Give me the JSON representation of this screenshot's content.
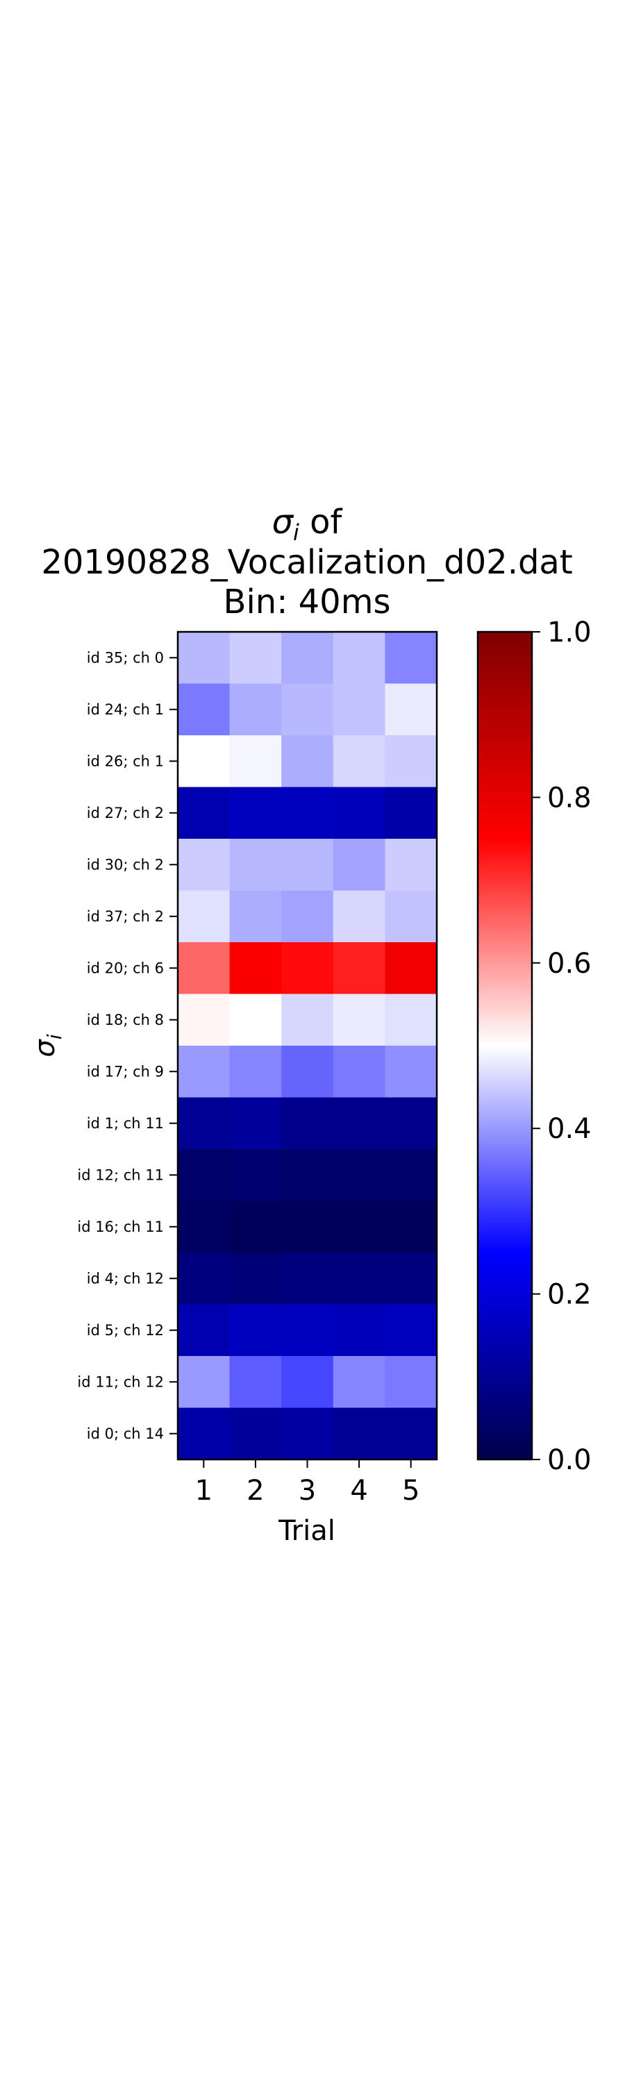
{
  "chart_data": {
    "type": "heatmap",
    "title": {
      "symbol": "σ",
      "subscript": "i",
      "suffix": " of",
      "line2": "20190828_Vocalization_d02.dat",
      "line3": "Bin: 40ms"
    },
    "xlabel": "Trial",
    "ylabel": {
      "symbol": "σ",
      "subscript": "i"
    },
    "x_categories": [
      "1",
      "2",
      "3",
      "4",
      "5"
    ],
    "y_categories": [
      "id 35; ch 0",
      "id 24; ch 1",
      "id 26; ch 1",
      "id 27; ch 2",
      "id 30; ch 2",
      "id 37; ch 2",
      "id 20; ch 6",
      "id 18; ch 8",
      "id 17; ch 9",
      "id 1; ch 11",
      "id 12; ch 11",
      "id 16; ch 11",
      "id 4; ch 12",
      "id 5; ch 12",
      "id 11; ch 12",
      "id 0; ch 14"
    ],
    "values": [
      [
        0.43,
        0.45,
        0.42,
        0.44,
        0.38
      ],
      [
        0.37,
        0.42,
        0.43,
        0.44,
        0.48
      ],
      [
        0.5,
        0.49,
        0.42,
        0.46,
        0.45
      ],
      [
        0.14,
        0.16,
        0.16,
        0.15,
        0.13
      ],
      [
        0.45,
        0.43,
        0.43,
        0.41,
        0.45
      ],
      [
        0.47,
        0.42,
        0.41,
        0.46,
        0.44
      ],
      [
        0.65,
        0.76,
        0.74,
        0.72,
        0.78
      ],
      [
        0.51,
        0.5,
        0.46,
        0.48,
        0.47
      ],
      [
        0.4,
        0.38,
        0.35,
        0.37,
        0.39
      ],
      [
        0.1,
        0.11,
        0.09,
        0.09,
        0.09
      ],
      [
        0.04,
        0.05,
        0.04,
        0.04,
        0.04
      ],
      [
        0.03,
        0.02,
        0.02,
        0.02,
        0.02
      ],
      [
        0.07,
        0.06,
        0.07,
        0.07,
        0.07
      ],
      [
        0.14,
        0.16,
        0.16,
        0.15,
        0.16
      ],
      [
        0.4,
        0.34,
        0.32,
        0.38,
        0.37
      ],
      [
        0.13,
        0.11,
        0.12,
        0.1,
        0.1
      ]
    ],
    "colorbar": {
      "colormap": "seismic",
      "range": [
        0.0,
        1.0
      ],
      "ticks": [
        "0.0",
        "0.2",
        "0.4",
        "0.6",
        "0.8",
        "1.0"
      ]
    },
    "grid": false,
    "legend": "none"
  }
}
